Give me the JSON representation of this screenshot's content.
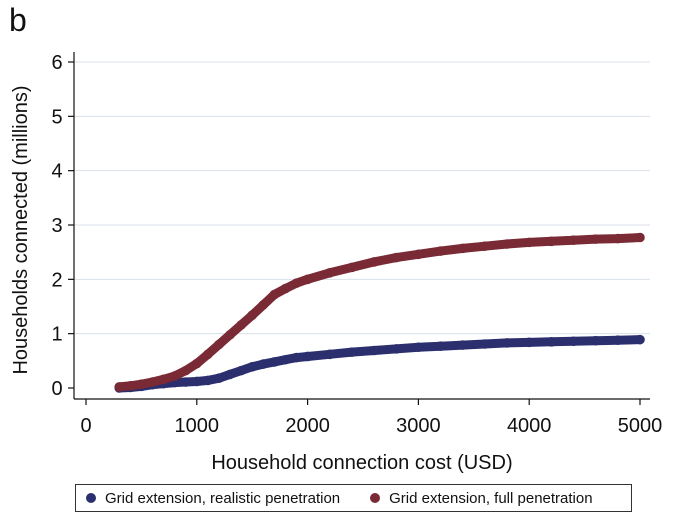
{
  "panel_label": "b",
  "colors": {
    "realistic": "#2b2f6e",
    "full": "#7a2a35",
    "grid": "#d8e0e8",
    "axis": "#111111"
  },
  "chart_data": {
    "type": "scatter",
    "title": "",
    "xlabel": "Household connection cost (USD)",
    "ylabel": "Households connected (millions)",
    "xlim": [
      0,
      5000
    ],
    "ylim": [
      0,
      6
    ],
    "xticks": [
      0,
      1000,
      2000,
      3000,
      4000,
      5000
    ],
    "yticks": [
      0,
      1,
      2,
      3,
      4,
      5,
      6
    ],
    "grid": true,
    "legend_position": "bottom",
    "series": [
      {
        "name": "Grid extension, realistic penetration",
        "color": "#2b2f6e",
        "x": [
          300,
          400,
          500,
          600,
          700,
          800,
          900,
          1000,
          1100,
          1200,
          1300,
          1400,
          1500,
          1600,
          1700,
          1800,
          1900,
          2000,
          2200,
          2400,
          2600,
          2800,
          3000,
          3200,
          3400,
          3600,
          3800,
          4000,
          4200,
          4400,
          4600,
          4800,
          5000
        ],
        "y": [
          0.0,
          0.01,
          0.03,
          0.06,
          0.08,
          0.1,
          0.11,
          0.12,
          0.14,
          0.18,
          0.25,
          0.32,
          0.39,
          0.44,
          0.48,
          0.52,
          0.56,
          0.58,
          0.62,
          0.66,
          0.69,
          0.72,
          0.75,
          0.77,
          0.79,
          0.81,
          0.83,
          0.84,
          0.85,
          0.86,
          0.87,
          0.88,
          0.89
        ]
      },
      {
        "name": "Grid extension, full penetration",
        "color": "#7a2a35",
        "x": [
          300,
          400,
          500,
          600,
          700,
          800,
          900,
          1000,
          1100,
          1200,
          1300,
          1400,
          1500,
          1600,
          1700,
          1800,
          1900,
          2000,
          2200,
          2400,
          2600,
          2800,
          3000,
          3200,
          3400,
          3600,
          3800,
          4000,
          4200,
          4400,
          4600,
          4800,
          5000
        ],
        "y": [
          0.02,
          0.04,
          0.07,
          0.11,
          0.16,
          0.22,
          0.32,
          0.45,
          0.62,
          0.8,
          0.98,
          1.16,
          1.34,
          1.53,
          1.72,
          1.83,
          1.93,
          2.0,
          2.12,
          2.22,
          2.32,
          2.4,
          2.46,
          2.52,
          2.57,
          2.61,
          2.65,
          2.68,
          2.7,
          2.72,
          2.74,
          2.75,
          2.77
        ]
      }
    ]
  }
}
